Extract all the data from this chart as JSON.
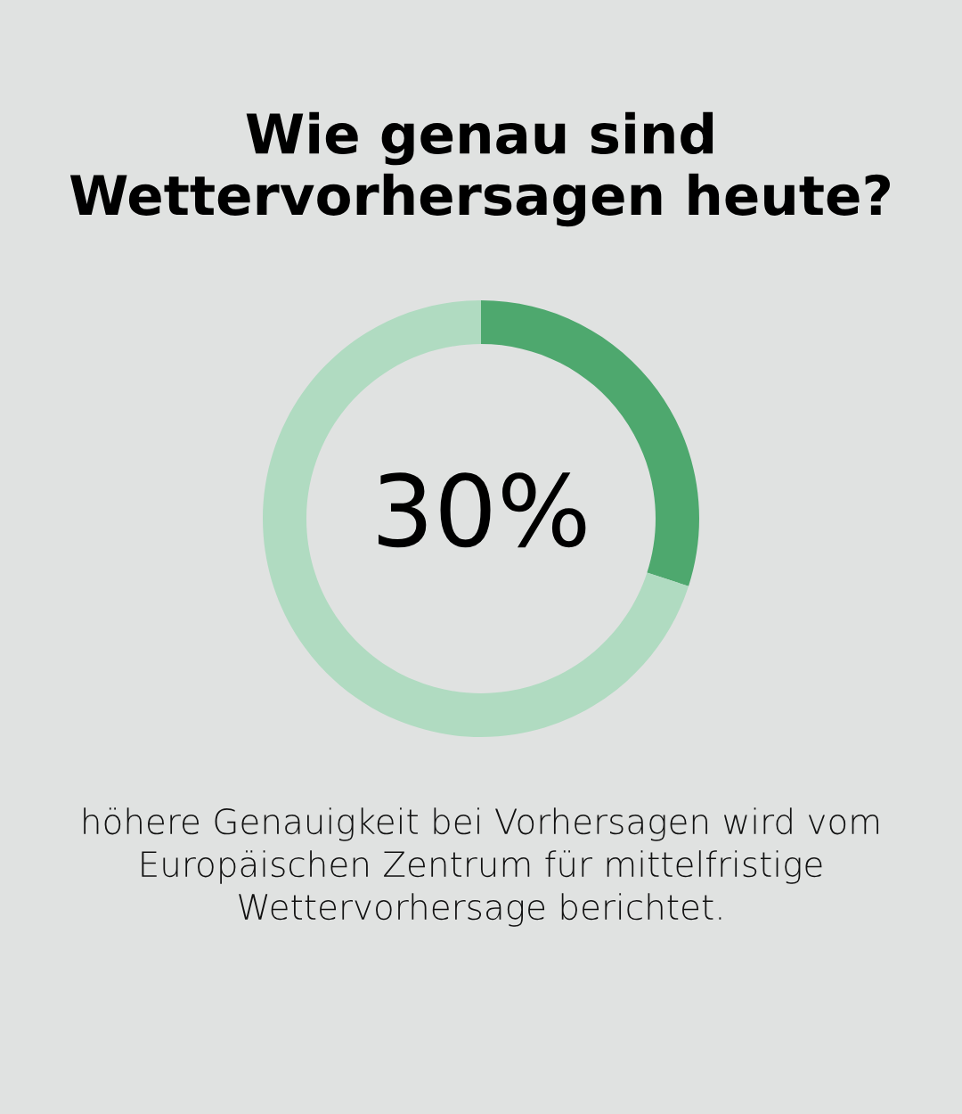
{
  "chart_data": {
    "type": "donut",
    "title": "Wie genau sind Wettervorhersagen heute?",
    "categories": [
      null,
      null
    ],
    "values": [
      30,
      70
    ],
    "colors": [
      "#4ea86e",
      "#b0dbc1"
    ],
    "annotations": [
      "30%",
      "höhere Genauigkeit bei Vorhersagen wird vom Europäischen Zentrum für mittelfristige Wettervorhersage berichtet."
    ]
  }
}
